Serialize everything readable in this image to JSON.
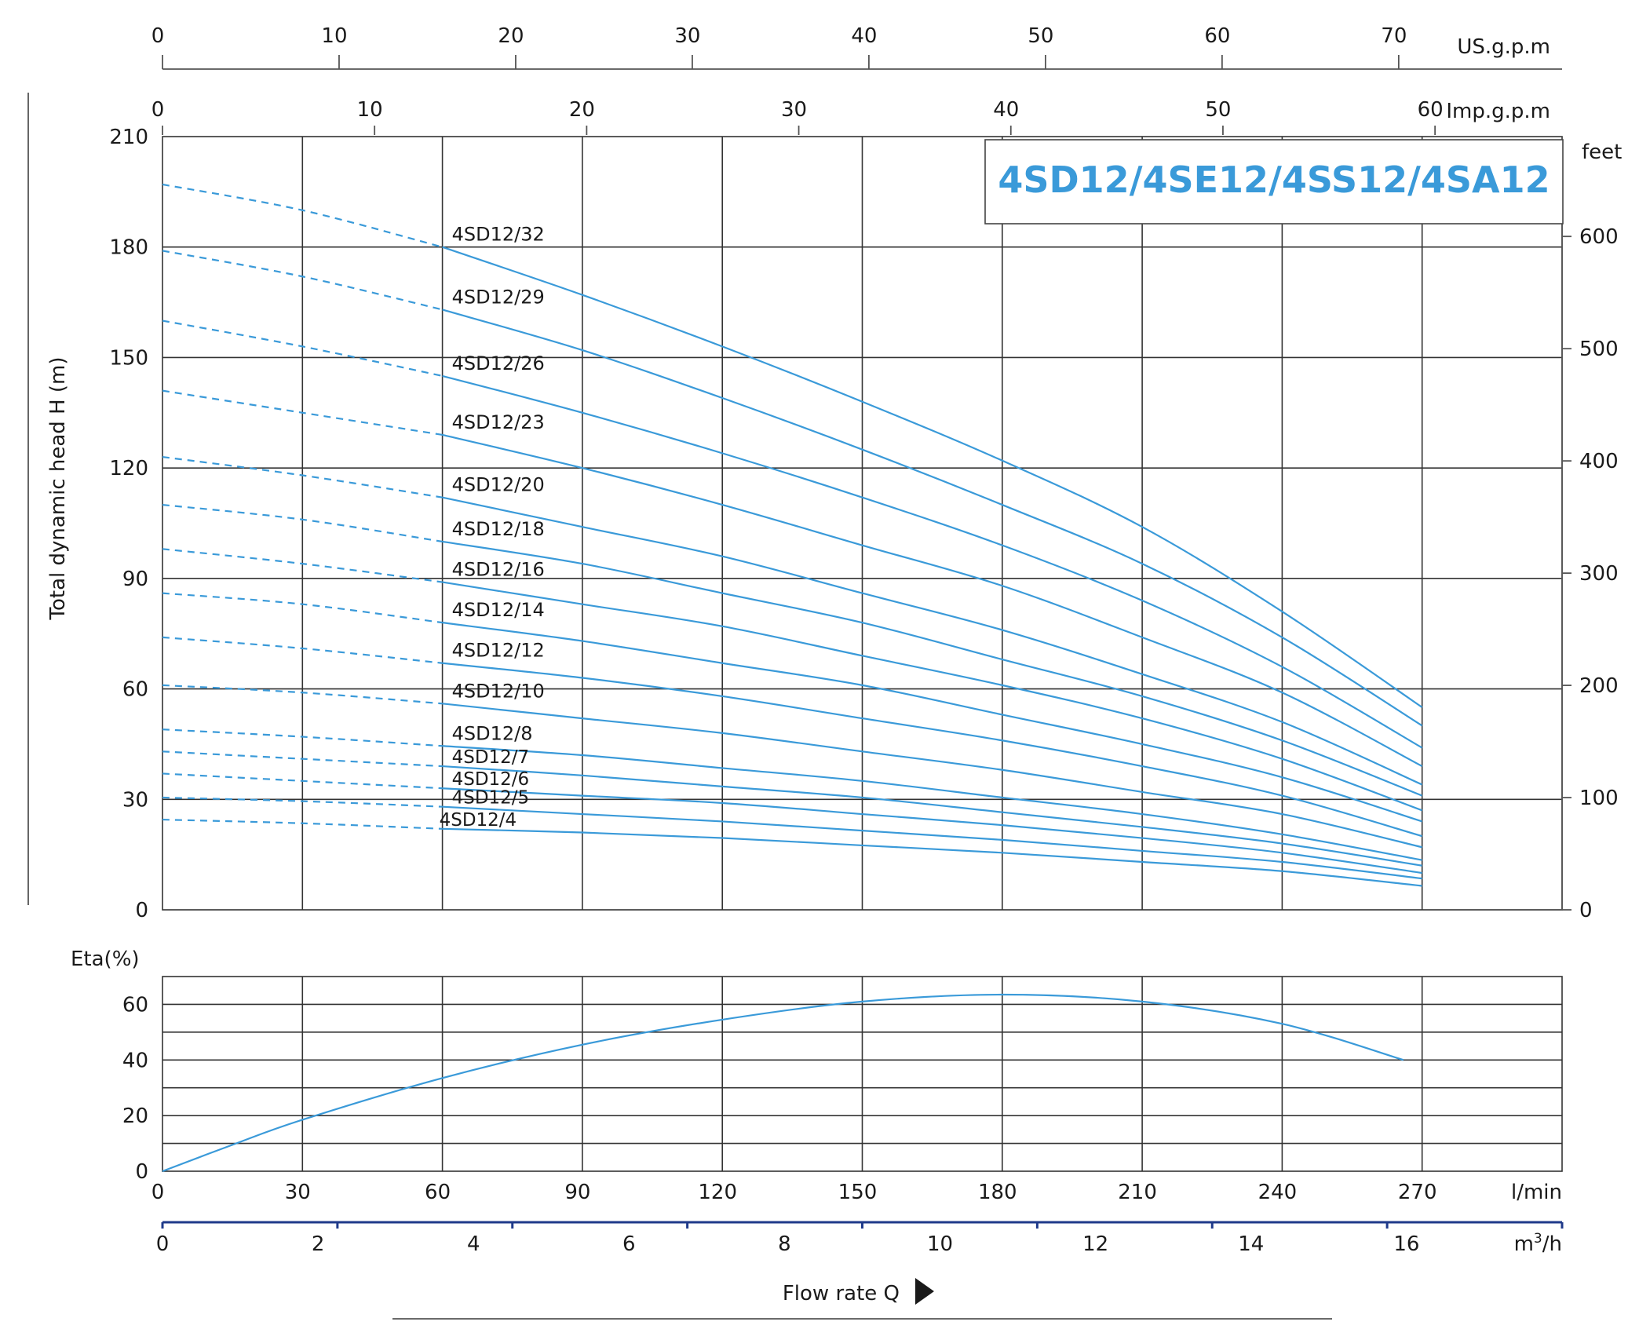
{
  "title": "4SD12/4SE12/4SS12/4SA12",
  "colors": {
    "curve": "#3a9ad9",
    "title": "#3a9ad9",
    "grid": "#333333",
    "flow_axis": "#1f3a8a"
  },
  "chart_data": [
    {
      "type": "line",
      "name": "head-curves",
      "ylabel": "Total dynamic head H (m)",
      "xlim": [
        0,
        300
      ],
      "ylim": [
        0,
        210
      ],
      "x_ticks": [
        0,
        30,
        60,
        90,
        120,
        150,
        180,
        210,
        240,
        270
      ],
      "y_ticks": [
        0,
        30,
        60,
        90,
        120,
        150,
        180,
        210
      ],
      "y_tick_labels": [
        "0",
        "30",
        "60",
        "90",
        "120",
        "150",
        "180",
        "210"
      ],
      "right_axis": {
        "unit": "feet",
        "ticks": [
          0,
          100,
          200,
          300,
          400,
          500,
          600
        ],
        "tick_labels": [
          "0",
          "100",
          "200",
          "300",
          "400",
          "500",
          "600"
        ]
      },
      "top_axis_us": {
        "unit": "US.g.p.m",
        "ticks": [
          0,
          10,
          20,
          30,
          40,
          50,
          60,
          70
        ],
        "tick_labels": [
          "0",
          "10",
          "20",
          "30",
          "40",
          "50",
          "60",
          "70"
        ]
      },
      "top_axis_imp": {
        "unit": "Imp.g.p.m",
        "ticks": [
          0,
          10,
          20,
          30,
          40,
          50,
          60
        ],
        "tick_labels": [
          "0",
          "10",
          "20",
          "30",
          "40",
          "50",
          "60"
        ]
      },
      "grid": true,
      "operating_range": [
        60,
        270
      ],
      "dashed_range": [
        0,
        60
      ],
      "series": [
        {
          "name": "4SD12/32",
          "points": [
            [
              0,
              197
            ],
            [
              30,
              190
            ],
            [
              60,
              180
            ],
            [
              90,
              167
            ],
            [
              120,
              153
            ],
            [
              150,
              138
            ],
            [
              180,
              122
            ],
            [
              210,
              104
            ],
            [
              240,
              81
            ],
            [
              270,
              55
            ]
          ]
        },
        {
          "name": "4SD12/29",
          "points": [
            [
              0,
              179
            ],
            [
              30,
              172
            ],
            [
              60,
              163
            ],
            [
              90,
              152
            ],
            [
              120,
              139
            ],
            [
              150,
              125
            ],
            [
              180,
              110
            ],
            [
              210,
              94
            ],
            [
              240,
              74
            ],
            [
              270,
              50
            ]
          ]
        },
        {
          "name": "4SD12/26",
          "points": [
            [
              0,
              160
            ],
            [
              30,
              153
            ],
            [
              60,
              145
            ],
            [
              90,
              135
            ],
            [
              120,
              124
            ],
            [
              150,
              112
            ],
            [
              180,
              99
            ],
            [
              210,
              84
            ],
            [
              240,
              66
            ],
            [
              270,
              44
            ]
          ]
        },
        {
          "name": "4SD12/23",
          "points": [
            [
              0,
              141
            ],
            [
              30,
              135
            ],
            [
              60,
              129
            ],
            [
              90,
              120
            ],
            [
              120,
              110
            ],
            [
              150,
              99
            ],
            [
              180,
              88
            ],
            [
              210,
              74
            ],
            [
              240,
              59
            ],
            [
              270,
              39
            ]
          ]
        },
        {
          "name": "4SD12/20",
          "points": [
            [
              0,
              123
            ],
            [
              30,
              118
            ],
            [
              60,
              112
            ],
            [
              90,
              104
            ],
            [
              120,
              96
            ],
            [
              150,
              86
            ],
            [
              180,
              76
            ],
            [
              210,
              64
            ],
            [
              240,
              51
            ],
            [
              270,
              34
            ]
          ]
        },
        {
          "name": "4SD12/18",
          "points": [
            [
              0,
              110
            ],
            [
              30,
              106
            ],
            [
              60,
              100
            ],
            [
              90,
              94
            ],
            [
              120,
              86
            ],
            [
              150,
              78
            ],
            [
              180,
              68
            ],
            [
              210,
              58
            ],
            [
              240,
              46
            ],
            [
              270,
              31
            ]
          ]
        },
        {
          "name": "4SD12/16",
          "points": [
            [
              0,
              98
            ],
            [
              30,
              94
            ],
            [
              60,
              89
            ],
            [
              90,
              83
            ],
            [
              120,
              77
            ],
            [
              150,
              69
            ],
            [
              180,
              61
            ],
            [
              210,
              52
            ],
            [
              240,
              41
            ],
            [
              270,
              27
            ]
          ]
        },
        {
          "name": "4SD12/14",
          "points": [
            [
              0,
              86
            ],
            [
              30,
              83
            ],
            [
              60,
              78
            ],
            [
              90,
              73
            ],
            [
              120,
              67
            ],
            [
              150,
              61
            ],
            [
              180,
              53
            ],
            [
              210,
              45
            ],
            [
              240,
              36
            ],
            [
              270,
              24
            ]
          ]
        },
        {
          "name": "4SD12/12",
          "points": [
            [
              0,
              74
            ],
            [
              30,
              71
            ],
            [
              60,
              67
            ],
            [
              90,
              63
            ],
            [
              120,
              58
            ],
            [
              150,
              52
            ],
            [
              180,
              46
            ],
            [
              210,
              39
            ],
            [
              240,
              31
            ],
            [
              270,
              20
            ]
          ]
        },
        {
          "name": "4SD12/10",
          "points": [
            [
              0,
              61
            ],
            [
              30,
              59
            ],
            [
              60,
              56
            ],
            [
              90,
              52
            ],
            [
              120,
              48
            ],
            [
              150,
              43
            ],
            [
              180,
              38
            ],
            [
              210,
              32
            ],
            [
              240,
              26
            ],
            [
              270,
              17
            ]
          ]
        },
        {
          "name": "4SD12/8",
          "points": [
            [
              0,
              49
            ],
            [
              30,
              47
            ],
            [
              60,
              44.5
            ],
            [
              90,
              42
            ],
            [
              120,
              38.5
            ],
            [
              150,
              35
            ],
            [
              180,
              30.5
            ],
            [
              210,
              26
            ],
            [
              240,
              20.5
            ],
            [
              270,
              13.5
            ]
          ]
        },
        {
          "name": "4SD12/7",
          "points": [
            [
              0,
              43
            ],
            [
              30,
              41
            ],
            [
              60,
              39
            ],
            [
              90,
              36.5
            ],
            [
              120,
              33.5
            ],
            [
              150,
              30.5
            ],
            [
              180,
              26.5
            ],
            [
              210,
              22.5
            ],
            [
              240,
              18
            ],
            [
              270,
              12
            ]
          ]
        },
        {
          "name": "4SD12/6",
          "points": [
            [
              0,
              37
            ],
            [
              30,
              35
            ],
            [
              60,
              33
            ],
            [
              90,
              31
            ],
            [
              120,
              29
            ],
            [
              150,
              26
            ],
            [
              180,
              23
            ],
            [
              210,
              19.5
            ],
            [
              240,
              15.5
            ],
            [
              270,
              10
            ]
          ]
        },
        {
          "name": "4SD12/5",
          "points": [
            [
              0,
              30.5
            ],
            [
              30,
              29.5
            ],
            [
              60,
              28
            ],
            [
              90,
              26
            ],
            [
              120,
              24
            ],
            [
              150,
              21.5
            ],
            [
              180,
              19
            ],
            [
              210,
              16
            ],
            [
              240,
              13
            ],
            [
              270,
              8.5
            ]
          ]
        },
        {
          "name": "4SD12/4",
          "points": [
            [
              0,
              24.5
            ],
            [
              30,
              23.5
            ],
            [
              60,
              22
            ],
            [
              90,
              21
            ],
            [
              120,
              19.5
            ],
            [
              150,
              17.5
            ],
            [
              180,
              15.5
            ],
            [
              210,
              13
            ],
            [
              240,
              10.5
            ],
            [
              270,
              6.5
            ]
          ]
        }
      ]
    },
    {
      "type": "line",
      "name": "efficiency-curve",
      "ylabel": "Eta(%)",
      "xlim": [
        0,
        300
      ],
      "ylim": [
        0,
        70
      ],
      "y_ticks": [
        0,
        20,
        40,
        60
      ],
      "y_tick_labels": [
        "0",
        "20",
        "40",
        "60"
      ],
      "x_ticks": [
        0,
        30,
        60,
        90,
        120,
        150,
        180,
        210,
        240,
        270
      ],
      "x_tick_labels": [
        "0",
        "30",
        "60",
        "90",
        "120",
        "150",
        "180",
        "210",
        "240",
        "270"
      ],
      "xunit": "l/min",
      "second_x_axis": {
        "unit_base": "m",
        "unit_sup": "3",
        "unit_tail": "/h",
        "ticks": [
          0,
          2,
          4,
          6,
          8,
          10,
          12,
          14,
          16
        ],
        "tick_labels": [
          "0",
          "2",
          "4",
          "6",
          "8",
          "10",
          "12",
          "14",
          "16"
        ]
      },
      "xlabel": "Flow rate Q",
      "grid": true,
      "series": [
        {
          "name": "",
          "points": [
            [
              0,
              0
            ],
            [
              15,
              9.5
            ],
            [
              30,
              18.5
            ],
            [
              60,
              33.5
            ],
            [
              90,
              45.5
            ],
            [
              120,
              54.5
            ],
            [
              150,
              61
            ],
            [
              180,
              63.5
            ],
            [
              210,
              61
            ],
            [
              240,
              53
            ],
            [
              266,
              40
            ]
          ]
        }
      ]
    }
  ]
}
